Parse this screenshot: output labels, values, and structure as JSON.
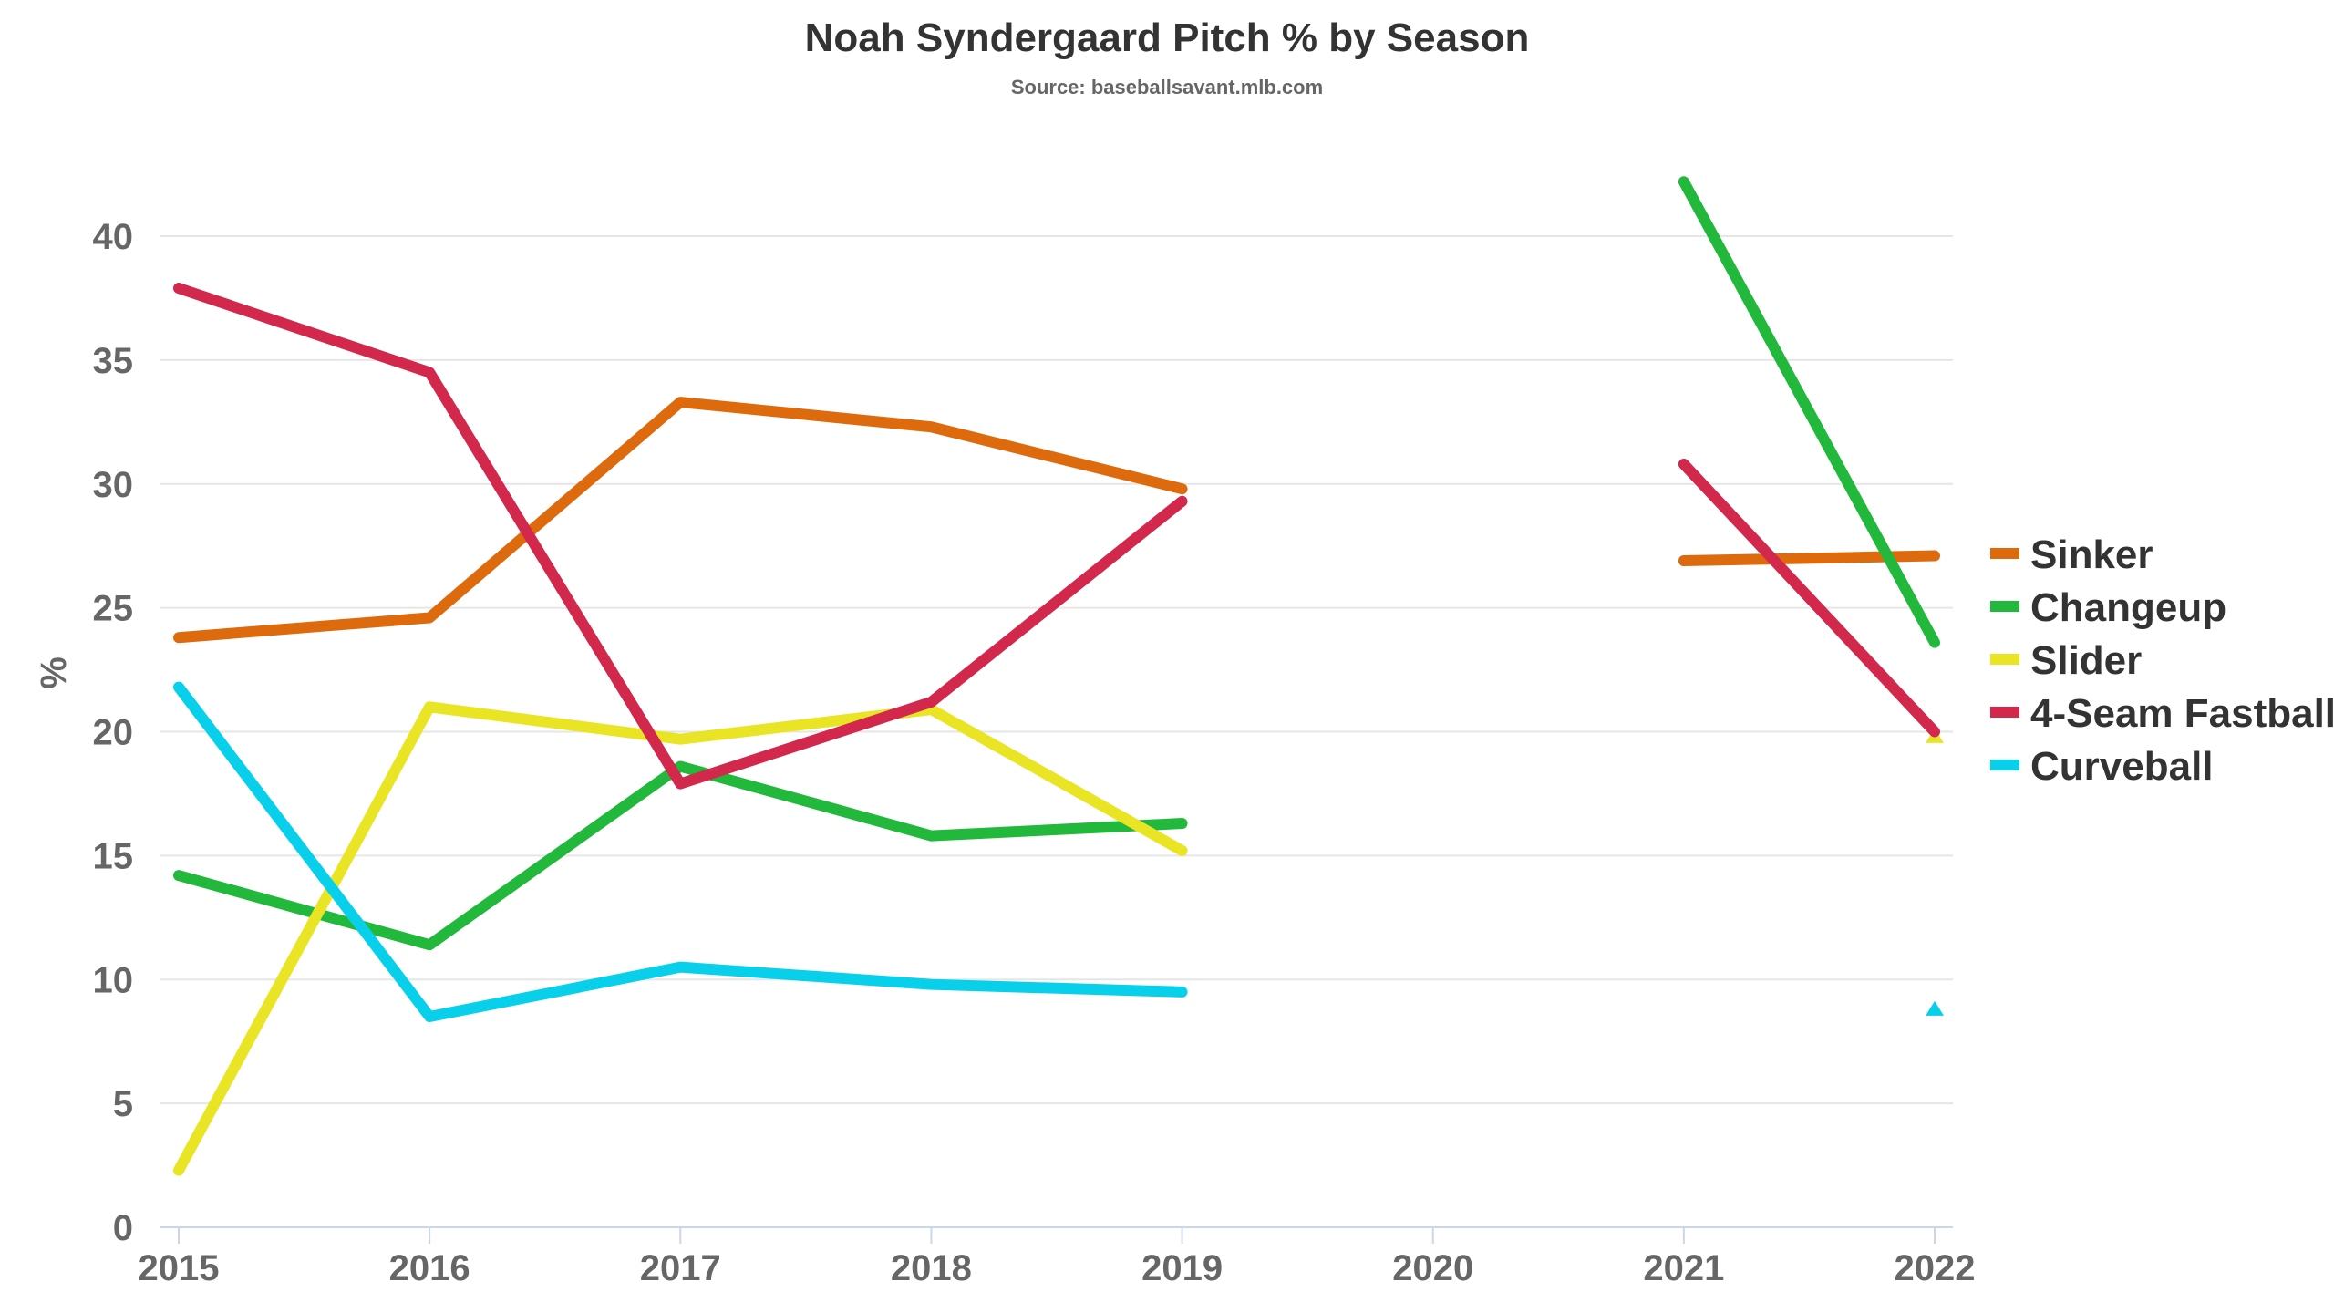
{
  "chart_data": {
    "type": "line",
    "title": "Noah Syndergaard Pitch % by Season",
    "subtitle": "Source: baseballsavant.mlb.com",
    "xlabel": "",
    "ylabel": "%",
    "categories": [
      "2015",
      "2016",
      "2017",
      "2018",
      "2019",
      "2020",
      "2021",
      "2022"
    ],
    "ylim": [
      0,
      40
    ],
    "yticks": [
      0,
      5,
      10,
      15,
      20,
      25,
      30,
      35,
      40
    ],
    "grid": true,
    "legend_position": "right",
    "series": [
      {
        "name": "Sinker",
        "color": "#dd6b0e",
        "values": [
          23.8,
          24.6,
          33.3,
          32.3,
          29.8,
          null,
          26.9,
          27.1
        ]
      },
      {
        "name": "Changeup",
        "color": "#21b83c",
        "values": [
          14.2,
          11.4,
          18.6,
          15.8,
          16.3,
          null,
          42.2,
          23.6
        ]
      },
      {
        "name": "Slider",
        "color": "#e9e424",
        "values": [
          2.3,
          21.0,
          19.7,
          20.9,
          15.2,
          null,
          null,
          19.8
        ]
      },
      {
        "name": "4-Seam Fastball",
        "color": "#d1284c",
        "values": [
          37.9,
          34.5,
          17.9,
          21.2,
          29.3,
          null,
          30.8,
          20.0
        ]
      },
      {
        "name": "Curveball",
        "color": "#09d0ea",
        "values": [
          21.8,
          8.5,
          10.5,
          9.8,
          9.5,
          null,
          null,
          8.8
        ]
      }
    ]
  }
}
